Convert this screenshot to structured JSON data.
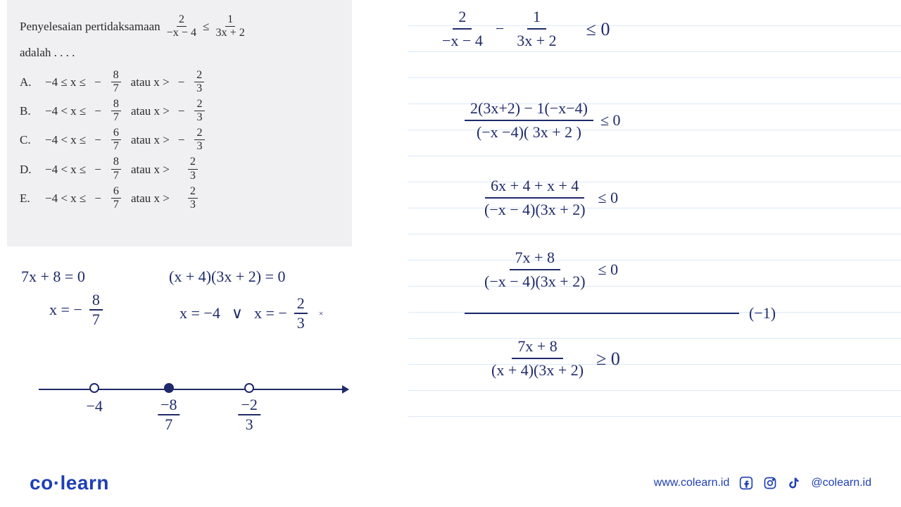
{
  "question": {
    "prefix": "Penyelesaian pertidaksamaan",
    "lhs_num": "2",
    "lhs_den": "−x − 4",
    "rel": "≤",
    "rhs_num": "1",
    "rhs_den": "3x + 2",
    "adalah": "adalah . . . .",
    "options": [
      {
        "letter": "A.",
        "range": "−4 ≤ x ≤",
        "frac_num": "8",
        "frac_den": "7",
        "neg": "−",
        "tail": "atau x >",
        "t_neg": "−",
        "t_num": "2",
        "t_den": "3"
      },
      {
        "letter": "B.",
        "range": "−4 < x ≤",
        "frac_num": "8",
        "frac_den": "7",
        "neg": "−",
        "tail": "atau x >",
        "t_neg": "−",
        "t_num": "2",
        "t_den": "3"
      },
      {
        "letter": "C.",
        "range": "−4 < x ≤",
        "frac_num": "6",
        "frac_den": "7",
        "neg": "−",
        "tail": "atau x >",
        "t_neg": "−",
        "t_num": "2",
        "t_den": "3"
      },
      {
        "letter": "D.",
        "range": "−4 < x ≤",
        "frac_num": "8",
        "frac_den": "7",
        "neg": "−",
        "tail": "atau x >",
        "t_neg": "",
        "t_num": "2",
        "t_den": "3"
      },
      {
        "letter": "E.",
        "range": "−4 < x ≤",
        "frac_num": "6",
        "frac_den": "7",
        "neg": "−",
        "tail": "atau x >",
        "t_neg": "",
        "t_num": "2",
        "t_den": "3"
      }
    ]
  },
  "work_right": {
    "step1": {
      "a_num": "2",
      "a_den": "−x − 4",
      "minus": "−",
      "b_num": "1",
      "b_den": "3x + 2",
      "rel": "≤ 0"
    },
    "step2": {
      "num": "2(3x+2) − 1(−x−4)",
      "den": "(−x −4)( 3x + 2 )",
      "rel": "≤ 0"
    },
    "step3": {
      "num": "6x + 4 + x + 4",
      "den": "(−x − 4)(3x + 2)",
      "rel": "≤ 0"
    },
    "step4": {
      "num": "7x + 8",
      "den": "(−x − 4)(3x + 2)",
      "rel": "≤ 0"
    },
    "mult": "(−1)",
    "step5": {
      "num": "7x + 8",
      "den": "(x + 4)(3x + 2)",
      "rel": "≥ 0"
    }
  },
  "work_left": {
    "eq1": "7x + 8 = 0",
    "eq1b_pre": "x = −",
    "eq1b_num": "8",
    "eq1b_den": "7",
    "eq2": "(x + 4)(3x + 2) = 0",
    "eq2b_a": "x = −4",
    "eq2b_or": "∨",
    "eq2b_b_pre": "x = −",
    "eq2b_b_num": "2",
    "eq2b_b_den": "3"
  },
  "numberline": {
    "points": [
      {
        "pos_pct": 18,
        "filled": false,
        "label": "−4"
      },
      {
        "pos_pct": 42,
        "filled": true,
        "label_frac": {
          "num": "−8",
          "den": "7"
        }
      },
      {
        "pos_pct": 68,
        "filled": false,
        "label_frac": {
          "num": "−2",
          "den": "3"
        }
      }
    ]
  },
  "footer": {
    "brand_a": "co",
    "brand_b": "learn",
    "url": "www.colearn.id",
    "handle": "@colearn.id"
  },
  "colors": {
    "ink": "#1f2a6a",
    "brand": "#1f3fb5",
    "panel_bg": "#f0f0f2",
    "rule": "#dbeaf9"
  }
}
